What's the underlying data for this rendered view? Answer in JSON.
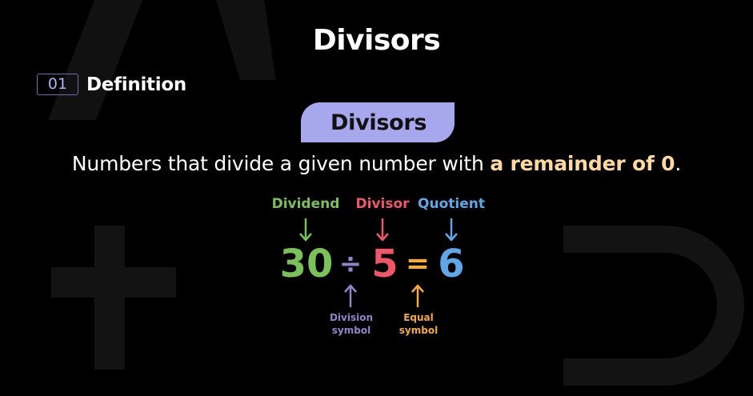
{
  "title": "Divisors",
  "section": {
    "number": "01",
    "label": "Definition"
  },
  "pill": "Divisors",
  "definition": {
    "text": "Numbers that divide a given number with ",
    "highlight": "a remainder of 0",
    "end": "."
  },
  "labels": {
    "dividend": "Dividend",
    "divisor": "Divisor",
    "quotient": "Quotient"
  },
  "equation": {
    "dividend": "30",
    "division_symbol": "÷",
    "divisor": "5",
    "equal_symbol": "=",
    "quotient": "6"
  },
  "bottom_labels": {
    "division": "Division\nsymbol",
    "equal": "Equal\nsymbol"
  },
  "colors": {
    "dividend": "#7cc05a",
    "divisor": "#f0566a",
    "quotient": "#5fa7e6",
    "division": "#8b87c9",
    "equal": "#f6a93b",
    "pill": "#a7a7ee",
    "highlight": "#ffd9a0"
  }
}
